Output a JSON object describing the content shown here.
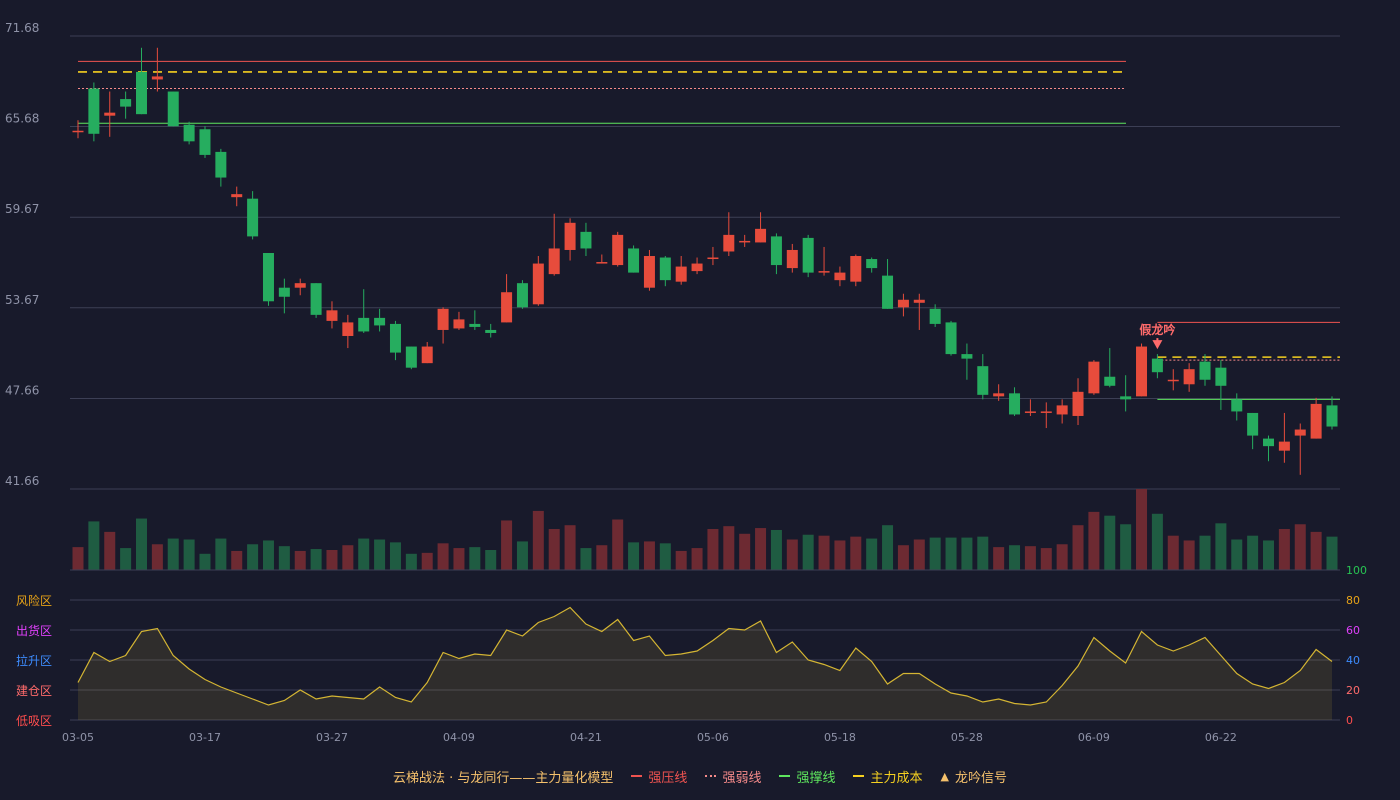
{
  "chart_data": {
    "type": "candlestick",
    "price_axis": {
      "ticks": [
        41.66,
        47.66,
        53.67,
        59.67,
        65.68,
        71.68
      ],
      "ylim": [
        41.66,
        71.68
      ]
    },
    "x_tick_labels": [
      {
        "i": 0,
        "label": "03-05"
      },
      {
        "i": 8,
        "label": "03-17"
      },
      {
        "i": 16,
        "label": "03-27"
      },
      {
        "i": 24,
        "label": "04-09"
      },
      {
        "i": 32,
        "label": "04-21"
      },
      {
        "i": 40,
        "label": "05-06"
      },
      {
        "i": 48,
        "label": "05-18"
      },
      {
        "i": 56,
        "label": "05-28"
      },
      {
        "i": 64,
        "label": "06-09"
      },
      {
        "i": 72,
        "label": "06-22"
      }
    ],
    "candles": [
      [
        65.4,
        65.4,
        66.1,
        64.9
      ],
      [
        68.2,
        65.2,
        68.6,
        64.7
      ],
      [
        66.4,
        66.6,
        68.0,
        65.0
      ],
      [
        67.5,
        67.0,
        68.0,
        66.2
      ],
      [
        69.3,
        66.5,
        70.9,
        66.5
      ],
      [
        68.8,
        69.0,
        70.9,
        68.0
      ],
      [
        68.0,
        65.7,
        68.0,
        65.7
      ],
      [
        65.8,
        64.7,
        66.0,
        64.5
      ],
      [
        65.5,
        63.8,
        65.7,
        63.6
      ],
      [
        64.0,
        62.3,
        64.2,
        61.7
      ],
      [
        61.0,
        61.2,
        61.7,
        60.4
      ],
      [
        60.9,
        58.4,
        61.4,
        58.2
      ],
      [
        57.3,
        54.1,
        57.3,
        53.8
      ],
      [
        55.0,
        54.4,
        55.6,
        53.3
      ],
      [
        55.0,
        55.3,
        55.6,
        54.5
      ],
      [
        55.3,
        53.2,
        55.3,
        53.0
      ],
      [
        52.8,
        53.5,
        54.1,
        52.3
      ],
      [
        51.8,
        52.7,
        53.2,
        51.0
      ],
      [
        53.0,
        52.1,
        54.9,
        52.0
      ],
      [
        53.0,
        52.5,
        53.6,
        52.1
      ],
      [
        52.6,
        50.7,
        52.8,
        50.2
      ],
      [
        51.1,
        49.7,
        51.1,
        49.6
      ],
      [
        50.0,
        51.1,
        51.4,
        50.0
      ],
      [
        52.2,
        53.6,
        53.7,
        51.3
      ],
      [
        52.3,
        52.9,
        53.4,
        52.2
      ],
      [
        52.6,
        52.4,
        53.5,
        52.2
      ],
      [
        52.2,
        52.0,
        52.6,
        51.7
      ],
      [
        52.7,
        54.7,
        55.9,
        52.7
      ],
      [
        55.3,
        53.7,
        55.5,
        53.6
      ],
      [
        53.9,
        56.6,
        57.1,
        53.8
      ],
      [
        55.9,
        57.6,
        59.9,
        55.8
      ],
      [
        57.5,
        59.3,
        59.6,
        56.8
      ],
      [
        58.7,
        57.6,
        59.3,
        57.1
      ],
      [
        56.6,
        56.7,
        57.2,
        56.6
      ],
      [
        56.5,
        58.5,
        58.7,
        56.4
      ],
      [
        57.6,
        56.0,
        57.8,
        56.0
      ],
      [
        55.0,
        57.1,
        57.5,
        54.8
      ],
      [
        57.0,
        55.5,
        57.1,
        55.1
      ],
      [
        55.4,
        56.4,
        57.1,
        55.2
      ],
      [
        56.1,
        56.6,
        57.0,
        55.9
      ],
      [
        56.9,
        57.0,
        57.7,
        56.5
      ],
      [
        57.4,
        58.5,
        60.0,
        57.1
      ],
      [
        58.0,
        58.1,
        58.5,
        57.7
      ],
      [
        58.0,
        58.9,
        60.0,
        58.0
      ],
      [
        58.4,
        56.5,
        58.6,
        55.9
      ],
      [
        56.3,
        57.5,
        57.9,
        56.0
      ],
      [
        58.3,
        56.0,
        58.5,
        55.7
      ],
      [
        56.0,
        56.1,
        57.7,
        55.8
      ],
      [
        55.5,
        56.0,
        56.4,
        55.1
      ],
      [
        55.4,
        57.1,
        57.2,
        55.1
      ],
      [
        56.9,
        56.3,
        57.0,
        56.0
      ],
      [
        55.8,
        53.6,
        56.9,
        53.6
      ],
      [
        53.7,
        54.2,
        54.6,
        53.1
      ],
      [
        54.0,
        54.2,
        54.6,
        52.2
      ],
      [
        53.6,
        52.6,
        53.9,
        52.4
      ],
      [
        52.7,
        50.6,
        52.8,
        50.5
      ],
      [
        50.6,
        50.3,
        51.3,
        48.9
      ],
      [
        49.8,
        47.9,
        50.6,
        47.6
      ],
      [
        47.8,
        48.0,
        48.6,
        47.5
      ],
      [
        48.0,
        46.6,
        48.4,
        46.5
      ],
      [
        46.7,
        46.8,
        47.6,
        46.5
      ],
      [
        46.7,
        46.8,
        47.4,
        45.7
      ],
      [
        46.6,
        47.2,
        47.6,
        46.0
      ],
      [
        46.5,
        48.1,
        49.0,
        45.9
      ],
      [
        48.0,
        50.1,
        50.2,
        47.9
      ],
      [
        49.1,
        48.5,
        51.0,
        48.4
      ],
      [
        47.8,
        47.6,
        49.2,
        46.8
      ],
      [
        47.8,
        51.1,
        51.3,
        47.8
      ],
      [
        50.3,
        49.4,
        50.6,
        49.0
      ],
      [
        48.8,
        48.9,
        49.6,
        48.2
      ],
      [
        48.6,
        49.6,
        50.0,
        48.1
      ],
      [
        50.1,
        48.9,
        50.6,
        48.5
      ],
      [
        49.7,
        48.5,
        50.2,
        46.9
      ],
      [
        47.6,
        46.8,
        48.0,
        46.2
      ],
      [
        46.7,
        45.2,
        46.7,
        44.3
      ],
      [
        45.0,
        44.5,
        45.2,
        43.5
      ],
      [
        44.2,
        44.8,
        46.7,
        43.4
      ],
      [
        45.2,
        45.6,
        46.0,
        42.6
      ],
      [
        45.0,
        47.3,
        47.7,
        45.0
      ],
      [
        47.2,
        45.8,
        47.8,
        45.6
      ]
    ],
    "volume": [
      24,
      51,
      40,
      23,
      54,
      27,
      33,
      32,
      17,
      33,
      20,
      27,
      31,
      25,
      20,
      22,
      21,
      26,
      33,
      32,
      29,
      17,
      18,
      28,
      23,
      24,
      21,
      52,
      30,
      62,
      43,
      47,
      23,
      26,
      53,
      29,
      30,
      28,
      20,
      23,
      43,
      46,
      38,
      44,
      42,
      32,
      37,
      36,
      31,
      35,
      33,
      47,
      26,
      32,
      34,
      34,
      34,
      35,
      24,
      26,
      25,
      23,
      27,
      47,
      61,
      57,
      48,
      85,
      59,
      36,
      31,
      36,
      49,
      32,
      36,
      31,
      43,
      48,
      40,
      35
    ],
    "indicator_scale_labels": [
      {
        "v": 100,
        "zone": "",
        "color": "#27c452"
      },
      {
        "v": 80,
        "zone": "风险区",
        "color": "#e8a317"
      },
      {
        "v": 60,
        "zone": "出货区",
        "color": "#e040fb"
      },
      {
        "v": 40,
        "zone": "拉升区",
        "color": "#3d8bfd"
      },
      {
        "v": 20,
        "zone": "建仓区",
        "color": "#ff6b6b"
      },
      {
        "v": 0,
        "zone": "低吸区",
        "color": "#ff4d4d"
      }
    ],
    "indicator": [
      25,
      45,
      39,
      43,
      59,
      61,
      43,
      34,
      27,
      22,
      18,
      14,
      10,
      13,
      20,
      14,
      16,
      15,
      14,
      22,
      15,
      12,
      25,
      45,
      41,
      44,
      43,
      60,
      56,
      65,
      69,
      75,
      64,
      59,
      67,
      53,
      56,
      43,
      44,
      46,
      53,
      61,
      60,
      66,
      45,
      52,
      40,
      37,
      33,
      48,
      39,
      24,
      31,
      31,
      24,
      18,
      16,
      12,
      14,
      11,
      10,
      12,
      23,
      36,
      55,
      46,
      38,
      59,
      50,
      46,
      50,
      55,
      43,
      31,
      24,
      21,
      25,
      33,
      47,
      39
    ],
    "zone1": {
      "strong_resist": 70.0,
      "strong_weak": 68.2,
      "strong_support": 65.9,
      "main_cost": 69.3
    },
    "zone2": {
      "strong_resist": 52.7,
      "strong_weak": 50.2,
      "strong_support": 47.6,
      "main_cost": 50.4
    },
    "signal_label": "假龙吟",
    "colors": {
      "up": "#e74c3c",
      "down": "#26ad5f",
      "resist": "#ef5350",
      "weak": "#f58a8a",
      "support": "#5ee65e",
      "cost": "#f5d020",
      "grid": "#3c3f55",
      "axis_text": "#8f93a8",
      "indicator_line": "#d4b533",
      "signal": "#ff6b6b"
    }
  },
  "legend": {
    "title": "云梯战法 · 与龙同行——主力量化模型",
    "items": [
      {
        "key": "resist",
        "label": "强压线",
        "color": "#ef5350",
        "style": "solid"
      },
      {
        "key": "weak",
        "label": "强弱线",
        "color": "#f58a8a",
        "style": "dotted"
      },
      {
        "key": "support",
        "label": "强撑线",
        "color": "#5ee65e",
        "style": "solid"
      },
      {
        "key": "cost",
        "label": "主力成本",
        "color": "#f5d020",
        "style": "dashed"
      },
      {
        "key": "signal",
        "label": "龙吟信号",
        "color": "#f5c16c",
        "style": "triangle"
      }
    ]
  }
}
